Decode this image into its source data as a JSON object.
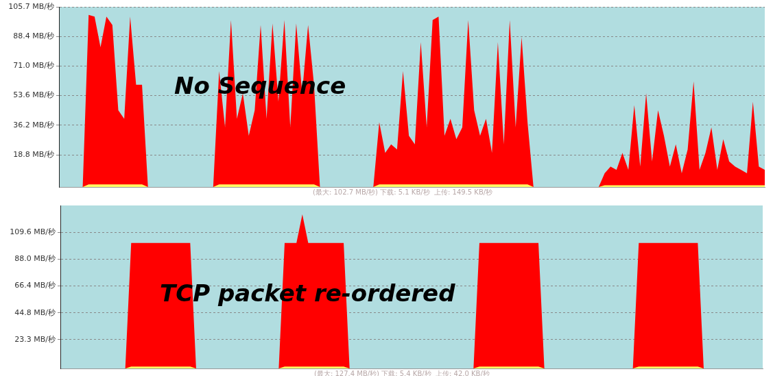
{
  "chart_data": [
    {
      "type": "area",
      "categories": [
        null,
        null,
        null,
        null,
        null,
        null,
        null,
        null,
        null,
        null,
        null,
        null,
        null,
        null,
        null,
        null,
        null,
        null,
        null,
        null,
        null,
        null,
        null,
        null,
        null,
        null,
        null,
        null,
        null,
        null,
        null,
        null,
        null,
        null,
        null,
        null,
        null,
        null,
        null,
        null,
        null,
        null,
        null,
        null,
        null,
        null,
        null,
        null,
        null,
        null,
        null,
        null,
        null,
        null,
        null,
        null,
        null,
        null,
        null,
        null,
        null,
        null,
        null,
        null,
        null,
        null,
        null,
        null,
        null,
        null,
        null,
        null,
        null,
        null,
        null,
        null,
        null,
        null,
        null,
        null,
        null,
        null,
        null,
        null,
        null,
        null,
        null,
        null,
        null,
        null,
        null,
        null,
        null,
        null,
        null,
        null,
        null,
        null,
        null,
        null,
        null,
        null,
        null,
        null,
        null,
        null,
        null,
        null,
        null,
        null,
        null,
        null,
        null,
        null,
        null,
        null,
        null,
        null,
        null,
        null
      ],
      "series": [
        {
          "color": "#ff0000",
          "values": [
            0,
            0,
            0,
            0,
            0,
            101,
            100,
            82,
            100,
            95,
            45,
            40,
            100,
            60,
            60,
            0,
            0,
            0,
            0,
            0,
            0,
            0,
            0,
            0,
            0,
            0,
            0,
            68,
            35,
            98,
            40,
            55,
            30,
            45,
            95,
            40,
            96,
            50,
            98,
            35,
            96,
            55,
            95,
            60,
            0,
            0,
            0,
            0,
            0,
            0,
            0,
            0,
            0,
            0,
            38,
            20,
            25,
            22,
            68,
            30,
            25,
            85,
            35,
            98,
            100,
            30,
            40,
            28,
            35,
            98,
            45,
            30,
            40,
            20,
            85,
            25,
            98,
            35,
            88,
            38,
            0,
            0,
            0,
            0,
            0,
            0,
            0,
            0,
            0,
            0,
            0,
            0,
            8,
            12,
            10,
            20,
            10,
            48,
            12,
            55,
            15,
            45,
            30,
            12,
            25,
            8,
            22,
            62,
            10,
            20,
            35,
            10,
            28,
            15,
            12,
            10,
            8,
            50,
            12,
            10
          ]
        },
        {
          "color": "#ffff66",
          "values": [
            0,
            0,
            0,
            0,
            0,
            1.5,
            1.5,
            1.5,
            1.5,
            1.5,
            1.5,
            1.5,
            1.5,
            1.5,
            1.5,
            0,
            0,
            0,
            0,
            0,
            0,
            0,
            0,
            0,
            0,
            0,
            0,
            1.5,
            1.5,
            1.5,
            1.5,
            1.5,
            1.5,
            1.5,
            1.5,
            1.5,
            1.5,
            1.5,
            1.5,
            1.5,
            1.5,
            1.5,
            1.5,
            1.5,
            0,
            0,
            0,
            0,
            0,
            0,
            0,
            0,
            0,
            0,
            1.5,
            1.5,
            1.5,
            1.5,
            1.5,
            1.5,
            1.5,
            1.5,
            1.5,
            1.5,
            1.5,
            1.5,
            1.5,
            1.5,
            1.5,
            1.5,
            1.5,
            1.5,
            1.5,
            1.5,
            1.5,
            1.5,
            1.5,
            1.5,
            1.5,
            1.5,
            0,
            0,
            0,
            0,
            0,
            0,
            0,
            0,
            0,
            0,
            0,
            0,
            1,
            1,
            1,
            1,
            1,
            1,
            1,
            1,
            1,
            1,
            1,
            1,
            1,
            1,
            1,
            1,
            1,
            1,
            1,
            1,
            1,
            1,
            1,
            1,
            1,
            1,
            1,
            1
          ]
        }
      ],
      "ylim": [
        0,
        105.7
      ],
      "yticks": [
        {
          "value": 18.8,
          "label": "18.8 MB/秒"
        },
        {
          "value": 36.2,
          "label": "36.2 MB/秒"
        },
        {
          "value": 53.6,
          "label": "53.6 MB/秒"
        },
        {
          "value": 71.0,
          "label": "71.0 MB/秒"
        },
        {
          "value": 88.4,
          "label": "88.4 MB/秒"
        },
        {
          "value": 105.7,
          "label": "105.7 MB/秒"
        }
      ],
      "grid": "y",
      "tick_labels": "y",
      "annotations": [
        "No Sequence",
        "(最大: 102.7 MB/秒) 下载: 5.1 KB/秒  上传: 149.5 KB/秒"
      ]
    },
    {
      "type": "area",
      "categories": [
        null,
        null,
        null,
        null,
        null,
        null,
        null,
        null,
        null,
        null,
        null,
        null,
        null,
        null,
        null,
        null,
        null,
        null,
        null,
        null,
        null,
        null,
        null,
        null,
        null,
        null,
        null,
        null,
        null,
        null,
        null,
        null,
        null,
        null,
        null,
        null,
        null,
        null,
        null,
        null,
        null,
        null,
        null,
        null,
        null,
        null,
        null,
        null,
        null,
        null,
        null,
        null,
        null,
        null,
        null,
        null,
        null,
        null,
        null,
        null,
        null,
        null,
        null,
        null,
        null,
        null,
        null,
        null,
        null,
        null,
        null,
        null,
        null,
        null,
        null,
        null,
        null,
        null,
        null,
        null,
        null,
        null,
        null,
        null,
        null,
        null,
        null,
        null,
        null,
        null,
        null,
        null,
        null,
        null,
        null,
        null,
        null,
        null,
        null,
        null,
        null,
        null,
        null,
        null,
        null,
        null,
        null,
        null,
        null,
        null,
        null,
        null,
        null,
        null,
        null,
        null,
        null,
        null,
        null,
        null
      ],
      "series": [
        {
          "color": "#ff0000",
          "values": [
            0,
            0,
            0,
            0,
            0,
            0,
            0,
            0,
            0,
            0,
            0,
            0,
            101,
            101,
            101,
            101,
            101,
            101,
            101,
            101,
            101,
            101,
            101,
            0,
            0,
            0,
            0,
            0,
            0,
            0,
            0,
            0,
            0,
            0,
            0,
            0,
            0,
            0,
            101,
            101,
            101,
            124,
            101,
            101,
            101,
            101,
            101,
            101,
            101,
            0,
            0,
            0,
            0,
            0,
            0,
            0,
            0,
            0,
            0,
            0,
            0,
            0,
            0,
            0,
            0,
            0,
            0,
            0,
            0,
            0,
            0,
            101,
            101,
            101,
            101,
            101,
            101,
            101,
            101,
            101,
            101,
            101,
            0,
            0,
            0,
            0,
            0,
            0,
            0,
            0,
            0,
            0,
            0,
            0,
            0,
            0,
            0,
            0,
            101,
            101,
            101,
            101,
            101,
            101,
            101,
            101,
            101,
            101,
            101,
            0,
            0,
            0,
            0,
            0,
            0,
            0,
            0,
            0,
            0,
            0
          ]
        },
        {
          "color": "#ffff66",
          "values": [
            0,
            0,
            0,
            0,
            0,
            0,
            0,
            0,
            0,
            0,
            0,
            0,
            1.5,
            1.5,
            1.5,
            1.5,
            1.5,
            1.5,
            1.5,
            1.5,
            1.5,
            1.5,
            1.5,
            0,
            0,
            0,
            0,
            0,
            0,
            0,
            0,
            0,
            0,
            0,
            0,
            0,
            0,
            0,
            1.5,
            1.5,
            1.5,
            1.5,
            1.5,
            1.5,
            1.5,
            1.5,
            1.5,
            1.5,
            1.5,
            0,
            0,
            0,
            0,
            0,
            0,
            0,
            0,
            0,
            0,
            0,
            0,
            0,
            0,
            0,
            0,
            0,
            0,
            0,
            0,
            0,
            0,
            1.5,
            1.5,
            1.5,
            1.5,
            1.5,
            1.5,
            1.5,
            1.5,
            1.5,
            1.5,
            1.5,
            0,
            0,
            0,
            0,
            0,
            0,
            0,
            0,
            0,
            0,
            0,
            0,
            0,
            0,
            0,
            0,
            1.5,
            1.5,
            1.5,
            1.5,
            1.5,
            1.5,
            1.5,
            1.5,
            1.5,
            1.5,
            1.5,
            0,
            0,
            0,
            0,
            0,
            0,
            0,
            0,
            0,
            0,
            0
          ]
        }
      ],
      "ylim": [
        0,
        131.2
      ],
      "yticks": [
        {
          "value": 23.3,
          "label": "23.3 MB/秒"
        },
        {
          "value": 44.8,
          "label": "44.8 MB/秒"
        },
        {
          "value": 66.4,
          "label": "66.4 MB/秒"
        },
        {
          "value": 88.0,
          "label": "88.0 MB/秒"
        },
        {
          "value": 109.6,
          "label": "109.6 MB/秒"
        }
      ],
      "grid": "y",
      "tick_labels": "y",
      "annotations": [
        "TCP packet re-ordered",
        "(最大: 127.4 MB/秒) 下载: 5.4 KB/秒  上传: 42.0 KB/秒"
      ]
    }
  ]
}
